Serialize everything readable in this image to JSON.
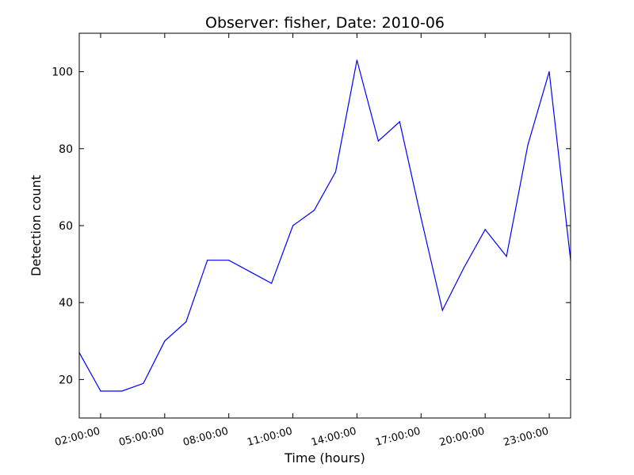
{
  "chart_data": {
    "type": "line",
    "title": "Observer: fisher, Date: 2010-06",
    "xlabel": "Time (hours)",
    "ylabel": "Detection count",
    "x_unit": "hour of day",
    "x": [
      1,
      2,
      3,
      4,
      5,
      6,
      7,
      8,
      9,
      10,
      11,
      12,
      13,
      14,
      15,
      16,
      17,
      18,
      19,
      20,
      21,
      22,
      23,
      24
    ],
    "xlim": [
      1,
      24
    ],
    "ylim": [
      10,
      110
    ],
    "y_ticks": [
      20,
      40,
      60,
      80,
      100
    ],
    "x_ticks": [
      2,
      5,
      8,
      11,
      14,
      17,
      20,
      23
    ],
    "x_tick_labels": [
      "02:00:00",
      "05:00:00",
      "08:00:00",
      "11:00:00",
      "14:00:00",
      "17:00:00",
      "20:00:00",
      "23:00:00"
    ],
    "grid": false,
    "series": [
      {
        "color": "#0000ff",
        "values": [
          27,
          17,
          17,
          19,
          30,
          35,
          51,
          51,
          48,
          45,
          60,
          64,
          74,
          103,
          82,
          87,
          62,
          38,
          49,
          59,
          52,
          81,
          100,
          51
        ]
      }
    ]
  }
}
